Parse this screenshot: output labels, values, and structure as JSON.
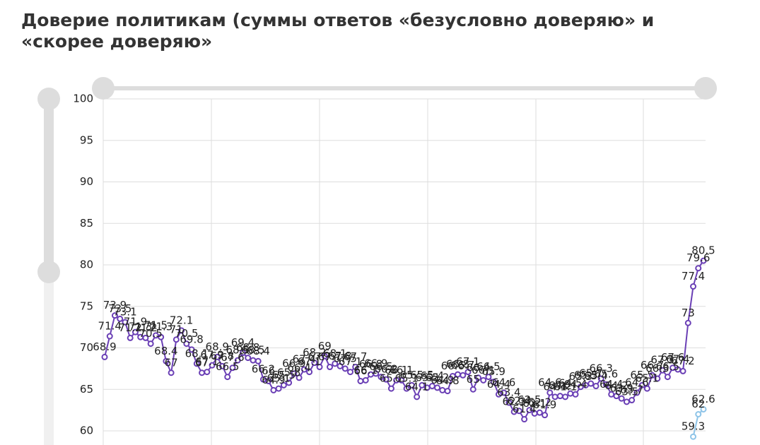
{
  "chart_data": {
    "type": "line",
    "title": "Доверие политикам (суммы ответов «безусловно доверяю» и «скорее доверяю»",
    "ylim": [
      55,
      100
    ],
    "yticks": [
      60,
      65,
      70,
      75,
      80,
      85,
      90,
      95,
      100
    ],
    "grid": true,
    "series": [
      {
        "color": "#6a3fb5",
        "values": [
          68.9,
          71.4,
          73.9,
          73.5,
          73.1,
          71.2,
          71.9,
          71.3,
          71.2,
          70.5,
          71.5,
          71.3,
          68.4,
          67,
          71,
          72.1,
          70.5,
          69.8,
          68.1,
          67,
          67.1,
          67.9,
          68.9,
          67.8,
          66.5,
          67.6,
          68.5,
          69.4,
          68.8,
          68.5,
          68.4,
          66.2,
          66,
          64.9,
          65.1,
          65.5,
          65.8,
          66.9,
          66.4,
          67.4,
          67.1,
          68.2,
          67.7,
          69,
          67.7,
          68.1,
          67.8,
          67.5,
          67.1,
          67.7,
          66,
          66.1,
          66.8,
          66.9,
          66.5,
          66.2,
          65.1,
          66.1,
          66.1,
          65.1,
          65.5,
          64.1,
          65.5,
          65.2,
          65.4,
          65.2,
          64.9,
          64.8,
          66.6,
          66.8,
          66.7,
          67.1,
          65,
          66.4,
          66.1,
          66.5,
          65.9,
          64.4,
          64.6,
          63.4,
          62.3,
          62.4,
          61.4,
          62.5,
          62.1,
          62.2,
          61.9,
          64.6,
          64.1,
          64.2,
          64.1,
          64.5,
          64.4,
          65.3,
          65.5,
          65.7,
          65.4,
          66.3,
          65.6,
          64.4,
          64.2,
          63.9,
          63.5,
          63.7,
          64.6,
          65.5,
          65.1,
          66.7,
          66.3,
          67.3,
          66.5,
          67.6,
          67.4,
          67.2,
          73,
          77.4,
          79.6,
          80.5
        ]
      },
      {
        "color": "#8ec4e8",
        "values": [
          null,
          null,
          null,
          null,
          null,
          null,
          null,
          null,
          null,
          null,
          null,
          null,
          null,
          null,
          null,
          null,
          null,
          null,
          null,
          null,
          null,
          null,
          null,
          null,
          null,
          null,
          null,
          null,
          null,
          null,
          null,
          null,
          null,
          null,
          null,
          null,
          null,
          null,
          null,
          null,
          null,
          null,
          null,
          null,
          null,
          null,
          null,
          null,
          null,
          null,
          null,
          null,
          null,
          null,
          null,
          null,
          null,
          null,
          null,
          null,
          null,
          null,
          null,
          null,
          null,
          null,
          null,
          null,
          null,
          null,
          null,
          null,
          null,
          null,
          null,
          null,
          null,
          null,
          null,
          null,
          null,
          null,
          null,
          null,
          null,
          null,
          null,
          null,
          null,
          null,
          null,
          null,
          null,
          null,
          null,
          null,
          null,
          null,
          null,
          null,
          null,
          null,
          null,
          null,
          null,
          null,
          null,
          null,
          null,
          null,
          null,
          null,
          null,
          null,
          null,
          59.3,
          62,
          62.6
        ]
      }
    ]
  }
}
